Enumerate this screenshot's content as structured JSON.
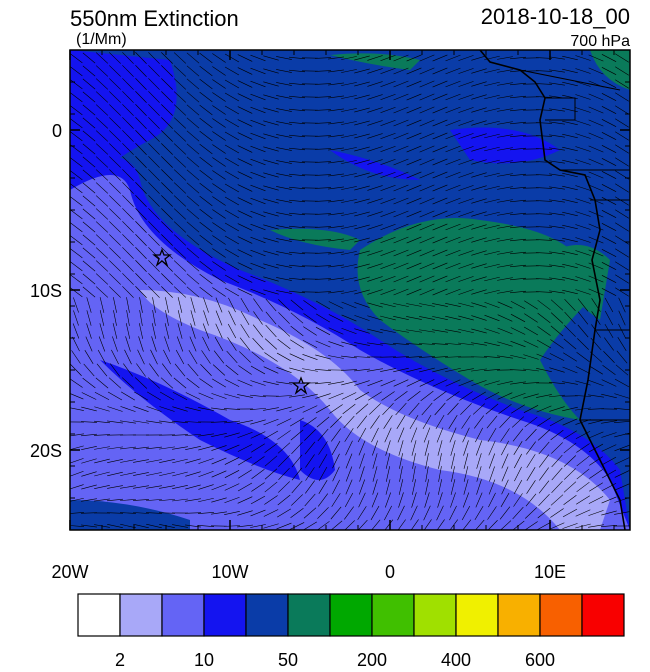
{
  "map": {
    "title": "550nm Extinction",
    "units": "(1/Mm)",
    "date": "2018-10-18_00",
    "level": "700 hPa",
    "xlim": [
      -20,
      15
    ],
    "ylim": [
      -25,
      5
    ],
    "xticks": [
      {
        "value": -20,
        "label": "20W"
      },
      {
        "value": -10,
        "label": "10W"
      },
      {
        "value": 0,
        "label": "0"
      },
      {
        "value": 10,
        "label": "10E"
      }
    ],
    "yticks": [
      {
        "value": 0,
        "label": "0"
      },
      {
        "value": -10,
        "label": "10S"
      },
      {
        "value": -20,
        "label": "20S"
      }
    ],
    "colorbar": {
      "colors": [
        "#ffffff",
        "#a8a8f8",
        "#6464f5",
        "#1414f0",
        "#0a3ca8",
        "#0a7a5a",
        "#00a800",
        "#40c000",
        "#a0e000",
        "#f0f000",
        "#f8b000",
        "#f86000",
        "#f80000"
      ],
      "labels": [
        {
          "boundary": 1,
          "label": "2"
        },
        {
          "boundary": 3,
          "label": "10"
        },
        {
          "boundary": 5,
          "label": "50"
        },
        {
          "boundary": 7,
          "label": "200"
        },
        {
          "boundary": 9,
          "label": "400"
        },
        {
          "boundary": 11,
          "label": "600"
        }
      ]
    }
  }
}
